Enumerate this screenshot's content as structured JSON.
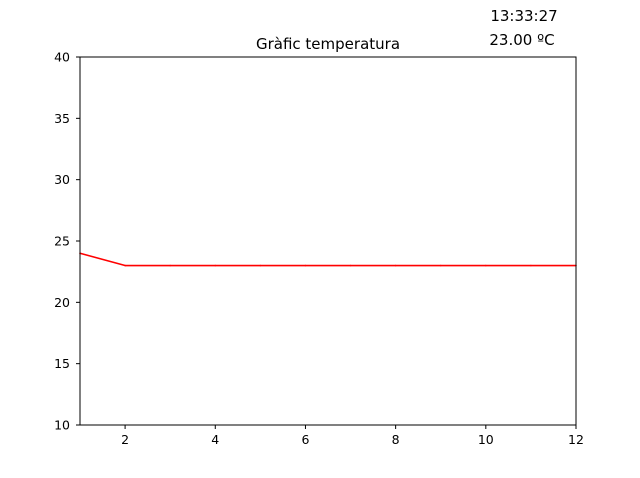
{
  "chart_data": {
    "type": "line",
    "title": "Gràfic temperatura",
    "xlabel": "",
    "ylabel": "",
    "xlim": [
      1,
      12
    ],
    "ylim": [
      10,
      40
    ],
    "xticks": [
      2,
      4,
      6,
      8,
      10,
      12
    ],
    "xtick_labels": [
      "2",
      "4",
      "6",
      "8",
      "10",
      "12"
    ],
    "yticks": [
      10,
      15,
      20,
      25,
      30,
      35,
      40
    ],
    "ytick_labels": [
      "10",
      "15",
      "20",
      "25",
      "30",
      "35",
      "40"
    ],
    "grid": false,
    "series": [
      {
        "color": "#ff0000",
        "x": [
          1,
          2,
          3,
          4,
          5,
          6,
          7,
          8,
          9,
          10,
          11,
          12
        ],
        "y": [
          24,
          23,
          23,
          23,
          23,
          23,
          23,
          23,
          23,
          23,
          23,
          23
        ]
      }
    ]
  },
  "readout": {
    "time": "13:33:27",
    "temperature": "23.00 ºC"
  }
}
